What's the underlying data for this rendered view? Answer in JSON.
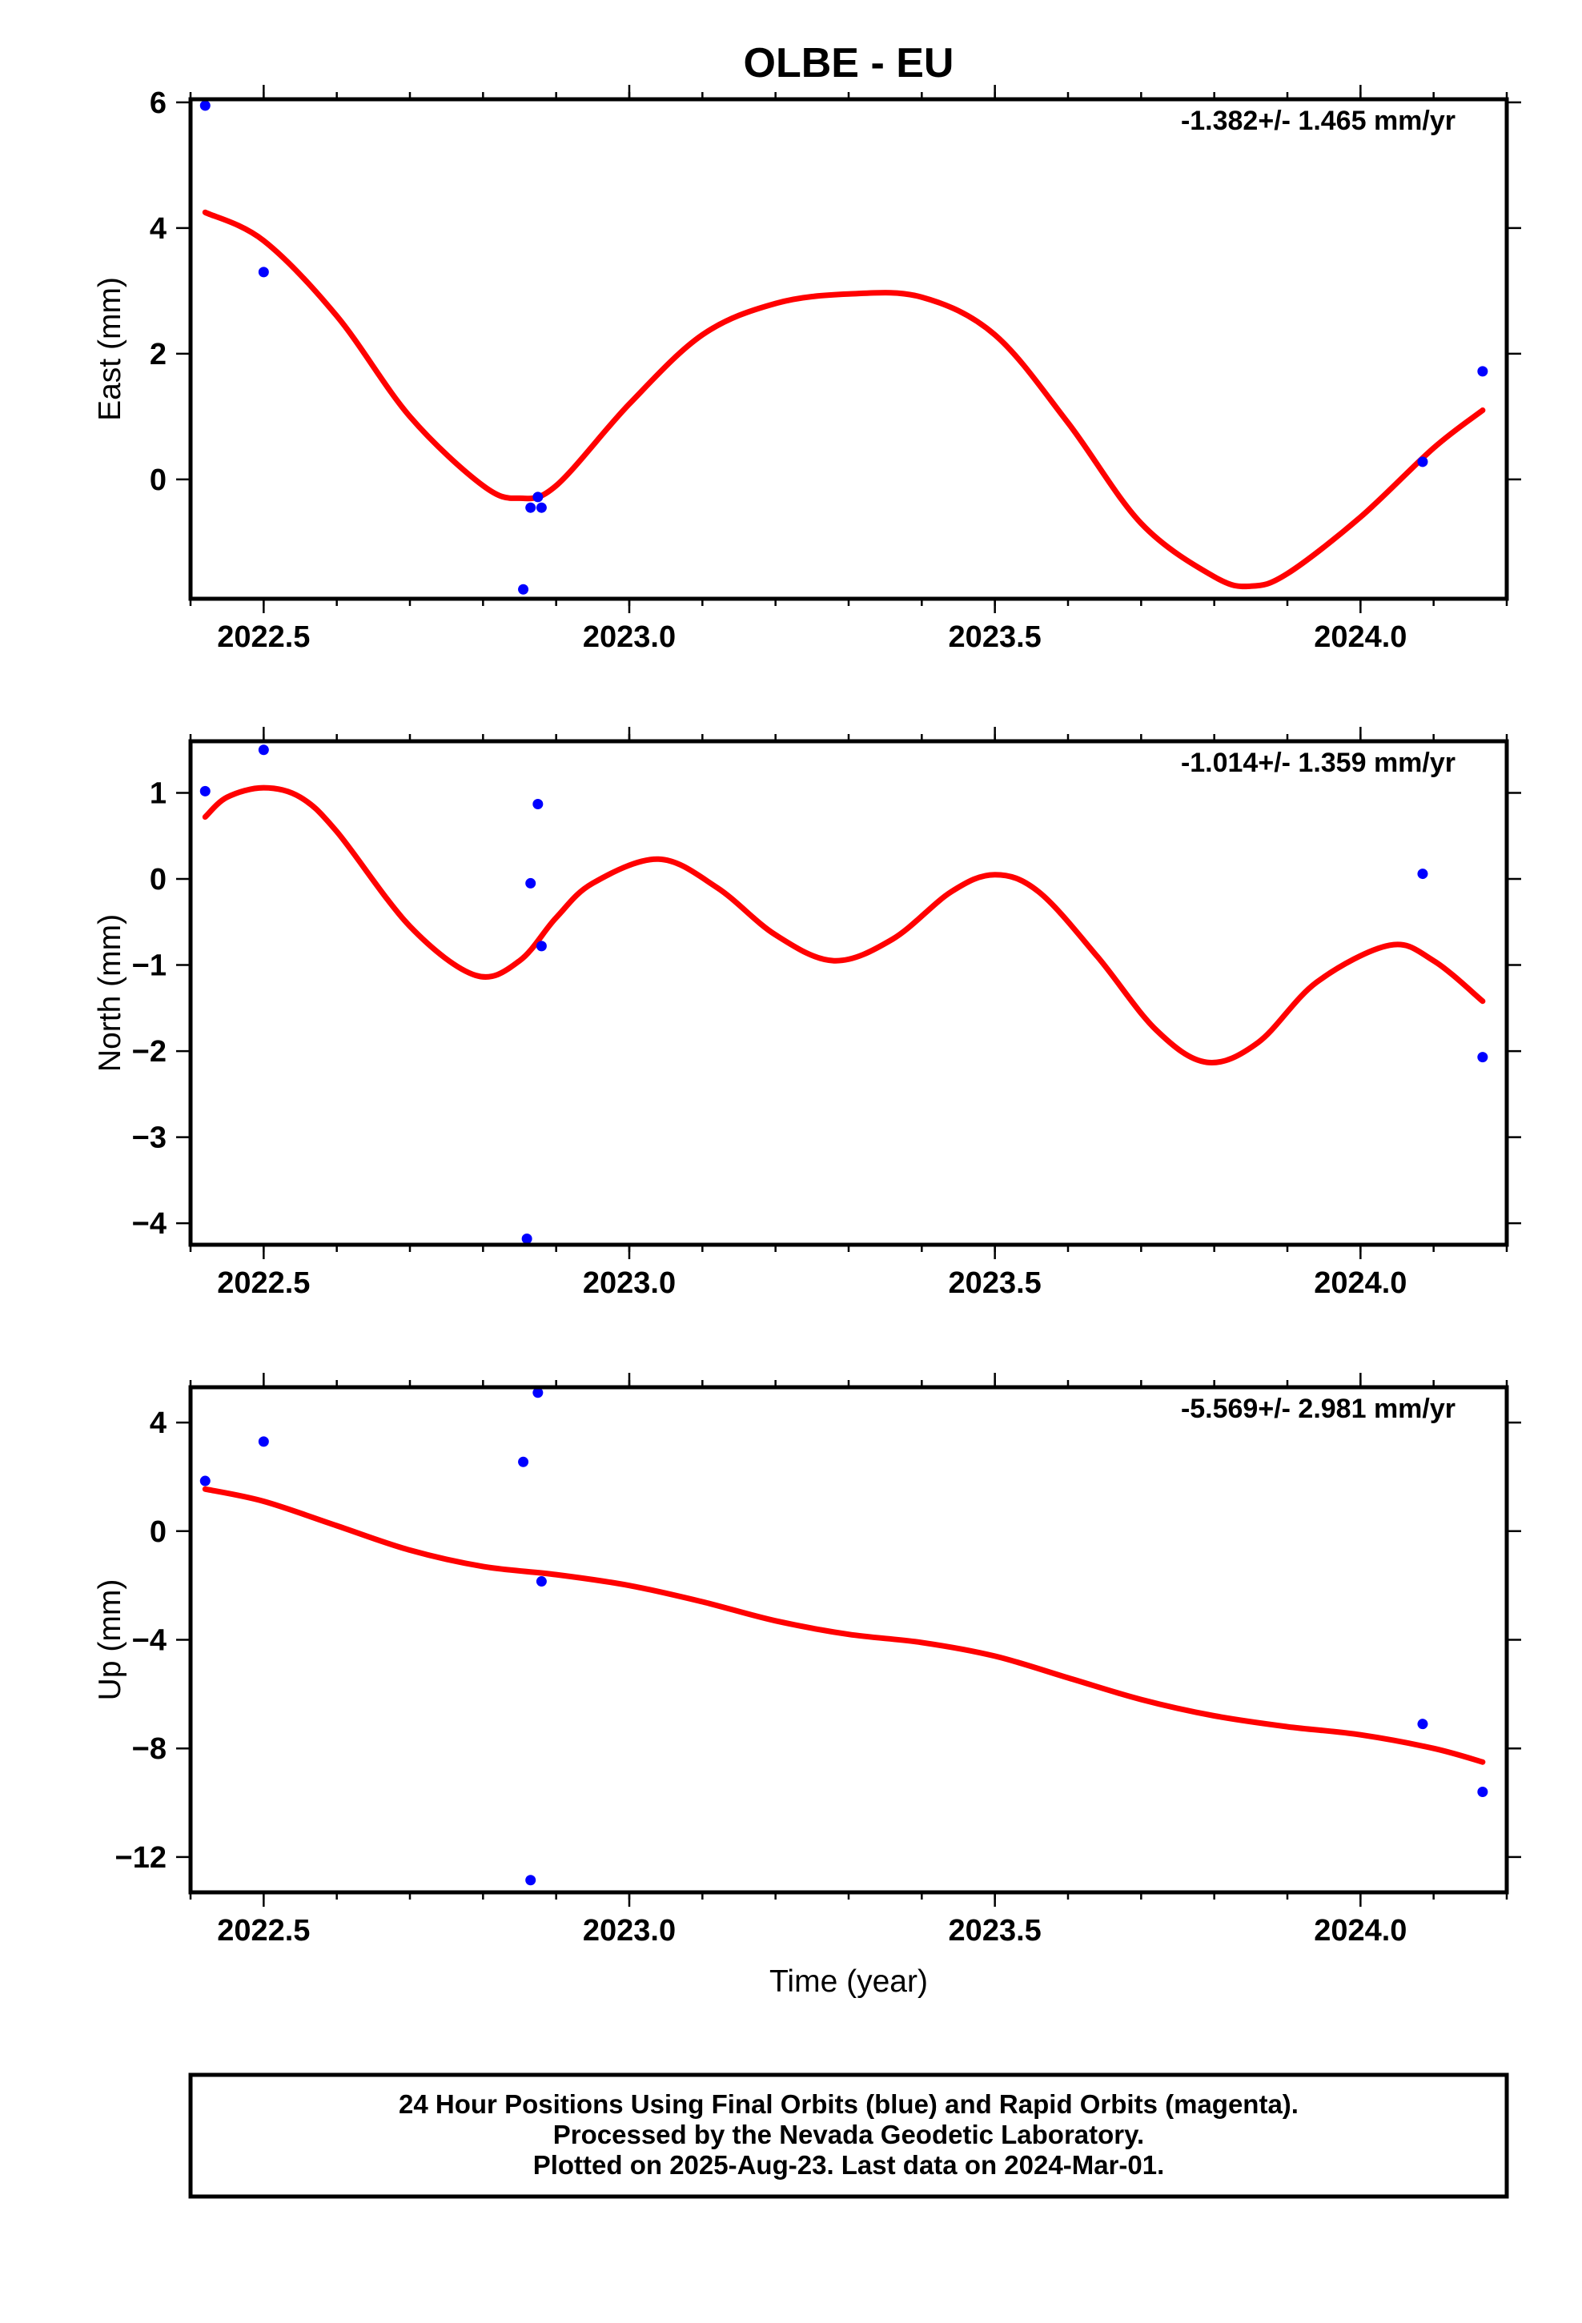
{
  "title": "OLBE - EU",
  "xlabel": "Time (year)",
  "footer": [
    "24 Hour Positions Using Final Orbits (blue) and Rapid Orbits (magenta).",
    "Processed by the Nevada Geodetic Laboratory.",
    "Plotted on 2025-Aug-23. Last data on 2024-Mar-01."
  ],
  "colors": {
    "points": "#0000ff",
    "fit": "#ff0000",
    "frame": "#000000"
  },
  "chart_data": [
    {
      "type": "scatter",
      "ylabel": "East (mm)",
      "rate": "-1.382+/- 1.465 mm/yr",
      "xlim": [
        2022.4,
        2024.2
      ],
      "ylim": [
        -1.9,
        6.05
      ],
      "xticks": [
        2022.5,
        2023.0,
        2023.5,
        2024.0
      ],
      "xtick_labels": [
        "2022.5",
        "2023.0",
        "2023.5",
        "2024.0"
      ],
      "yticks": [
        0,
        2,
        4,
        6
      ],
      "ytick_labels": [
        "0",
        "2",
        "4",
        "6"
      ],
      "points": {
        "x": [
          2022.42,
          2022.5,
          2022.855,
          2022.865,
          2022.875,
          2022.88,
          2024.085,
          2024.167
        ],
        "y": [
          5.95,
          3.3,
          -1.75,
          -0.45,
          -0.28,
          -0.45,
          0.28,
          1.72
        ]
      },
      "fit": {
        "x": [
          2022.42,
          2022.5,
          2022.6,
          2022.7,
          2022.8,
          2022.85,
          2022.9,
          2023.0,
          2023.1,
          2023.2,
          2023.3,
          2023.4,
          2023.5,
          2023.6,
          2023.7,
          2023.8,
          2023.85,
          2023.9,
          2024.0,
          2024.1,
          2024.167
        ],
        "y": [
          4.25,
          3.8,
          2.6,
          1.0,
          -0.1,
          -0.3,
          -0.1,
          1.2,
          2.3,
          2.8,
          2.95,
          2.9,
          2.3,
          0.9,
          -0.7,
          -1.55,
          -1.7,
          -1.5,
          -0.6,
          0.5,
          1.1
        ]
      }
    },
    {
      "type": "scatter",
      "ylabel": "North (mm)",
      "rate": "-1.014+/- 1.359 mm/yr",
      "xlim": [
        2022.4,
        2024.2
      ],
      "ylim": [
        -4.25,
        1.6
      ],
      "xticks": [
        2022.5,
        2023.0,
        2023.5,
        2024.0
      ],
      "xtick_labels": [
        "2022.5",
        "2023.0",
        "2023.5",
        "2024.0"
      ],
      "yticks": [
        -4,
        -3,
        -2,
        -1,
        0,
        1
      ],
      "ytick_labels": [
        "−4",
        "−3",
        "−2",
        "−1",
        "0",
        "1"
      ],
      "points": {
        "x": [
          2022.42,
          2022.5,
          2022.865,
          2022.875,
          2022.88,
          2022.86,
          2024.085,
          2024.167
        ],
        "y": [
          1.02,
          1.5,
          -0.05,
          0.87,
          -0.78,
          -4.18,
          0.06,
          -2.07
        ]
      },
      "fit": {
        "x": [
          2022.42,
          2022.45,
          2022.5,
          2022.55,
          2022.6,
          2022.7,
          2022.79,
          2022.85,
          2022.9,
          2022.95,
          2023.04,
          2023.12,
          2023.2,
          2023.28,
          2023.36,
          2023.44,
          2023.5,
          2023.56,
          2023.64,
          2023.72,
          2023.79,
          2023.86,
          2023.94,
          2024.04,
          2024.1,
          2024.167
        ],
        "y": [
          0.72,
          0.95,
          1.06,
          0.95,
          0.55,
          -0.55,
          -1.12,
          -0.95,
          -0.45,
          -0.05,
          0.23,
          -0.1,
          -0.65,
          -0.95,
          -0.7,
          -0.15,
          0.05,
          -0.15,
          -0.9,
          -1.75,
          -2.13,
          -1.9,
          -1.2,
          -0.77,
          -0.95,
          -1.42
        ]
      }
    },
    {
      "type": "scatter",
      "ylabel": "Up (mm)",
      "rate": "-5.569+/- 2.981 mm/yr",
      "xlim": [
        2022.4,
        2024.2
      ],
      "ylim": [
        -13.3,
        5.3
      ],
      "xticks": [
        2022.5,
        2023.0,
        2023.5,
        2024.0
      ],
      "xtick_labels": [
        "2022.5",
        "2023.0",
        "2023.5",
        "2024.0"
      ],
      "yticks": [
        -12,
        -8,
        -4,
        0,
        4
      ],
      "ytick_labels": [
        "−12",
        "−8",
        "−4",
        "0",
        "4"
      ],
      "points": {
        "x": [
          2022.42,
          2022.5,
          2022.855,
          2022.875,
          2022.88,
          2022.865,
          2024.085,
          2024.167
        ],
        "y": [
          1.85,
          3.3,
          2.55,
          5.1,
          -1.85,
          -12.85,
          -7.1,
          -9.6
        ]
      },
      "fit": {
        "x": [
          2022.42,
          2022.5,
          2022.6,
          2022.7,
          2022.8,
          2022.9,
          2023.0,
          2023.1,
          2023.2,
          2023.3,
          2023.4,
          2023.5,
          2023.6,
          2023.7,
          2023.8,
          2023.9,
          2024.0,
          2024.1,
          2024.167
        ],
        "y": [
          1.55,
          1.1,
          0.2,
          -0.7,
          -1.3,
          -1.6,
          -2.0,
          -2.6,
          -3.3,
          -3.8,
          -4.1,
          -4.6,
          -5.4,
          -6.2,
          -6.8,
          -7.2,
          -7.5,
          -8.0,
          -8.5
        ]
      }
    }
  ]
}
